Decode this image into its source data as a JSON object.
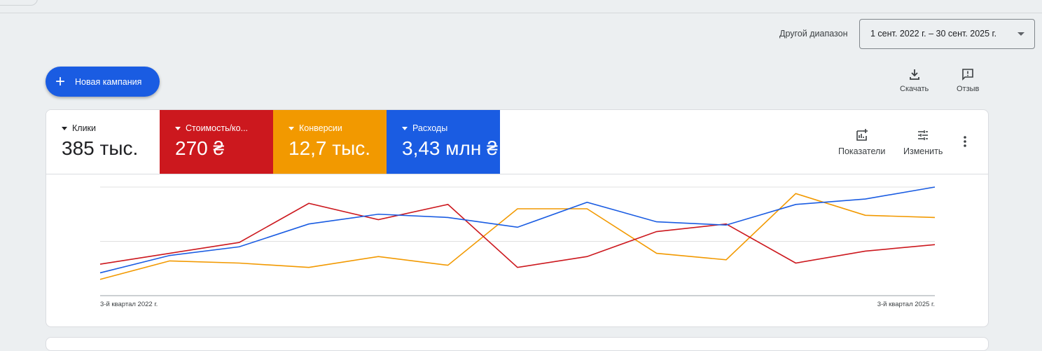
{
  "date_range": {
    "label": "Другой диапазон",
    "value": "1 сент. 2022 г. – 30 сент. 2025 г."
  },
  "new_campaign": {
    "label": "Новая кампания"
  },
  "toolbar": {
    "download": "Скачать",
    "feedback": "Отзыв"
  },
  "metrics": [
    {
      "label": "Клики",
      "value": "385 тыс.",
      "color": "#ffffff",
      "line_color": "#1a5ce2"
    },
    {
      "label": "Стоимость/ко...",
      "value": "270 ₴",
      "color": "#cc181e"
    },
    {
      "label": "Конверсии",
      "value": "12,7 тыс.",
      "color": "#f29900"
    },
    {
      "label": "Расходы",
      "value": "3,43 млн ₴",
      "color": "#1a5ce2"
    }
  ],
  "card_tools": {
    "metrics": "Показатели",
    "edit": "Изменить"
  },
  "chart_data": {
    "type": "line",
    "x_tick_labels": [
      "3-й квартал 2022 г.",
      "3-й квартал 2025 г."
    ],
    "grid": true,
    "ylim": [
      0,
      100
    ],
    "series": [
      {
        "name": "Клики",
        "color": "#1a5ce2",
        "values": [
          21,
          37,
          45,
          66,
          75,
          72,
          63,
          86,
          68,
          65,
          84,
          89,
          100
        ]
      },
      {
        "name": "Стоимость/ко...",
        "color": "#cc181e",
        "values": [
          29,
          39,
          49,
          85,
          70,
          84,
          26,
          36,
          59,
          66,
          30,
          41,
          47
        ]
      },
      {
        "name": "Конверсии",
        "color": "#f29900",
        "values": [
          15,
          32,
          30,
          26,
          36,
          28,
          80,
          80,
          39,
          33,
          94,
          74,
          72
        ]
      }
    ]
  }
}
